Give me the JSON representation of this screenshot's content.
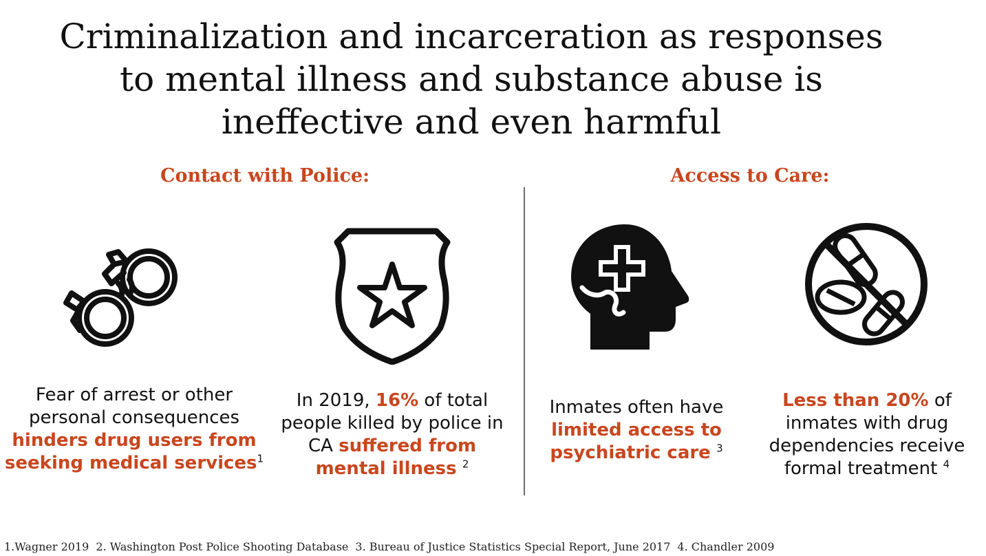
{
  "title": {
    "line1": "Criminalization and incarceration as responses",
    "line2": "to mental illness and substance abuse is",
    "line3": "ineffective and even harmful"
  },
  "sections": {
    "left_heading": "Contact with Police:",
    "right_heading": "Access to Care:"
  },
  "items": [
    {
      "icon": "handcuffs-icon",
      "pre": "Fear of arrest or other personal consequences",
      "highlight": "hinders drug users from seeking medical services",
      "ref": "1"
    },
    {
      "icon": "police-badge-icon",
      "pre": "In 2019,",
      "highlight1": "16%",
      "mid": "of total people killed by police in CA",
      "highlight2": "suffered from mental illness",
      "ref": "2"
    },
    {
      "icon": "head-medical-cross-icon",
      "pre": "Inmates often have",
      "highlight": "limited access to psychiatric care",
      "ref": "3"
    },
    {
      "icon": "no-pills-icon",
      "highlight": "Less than 20%",
      "post": "of inmates with drug dependencies receive formal treatment",
      "ref": "4"
    }
  ],
  "references": [
    "1.Wagner 2019",
    "2. Washington Post Police Shooting Database",
    "3. Bureau of Justice Statistics Special Report, June 2017",
    "4. Chandler 2009"
  ],
  "colors": {
    "accent": "#c9461e",
    "text": "#111111",
    "divider": "#6b6b6b"
  }
}
